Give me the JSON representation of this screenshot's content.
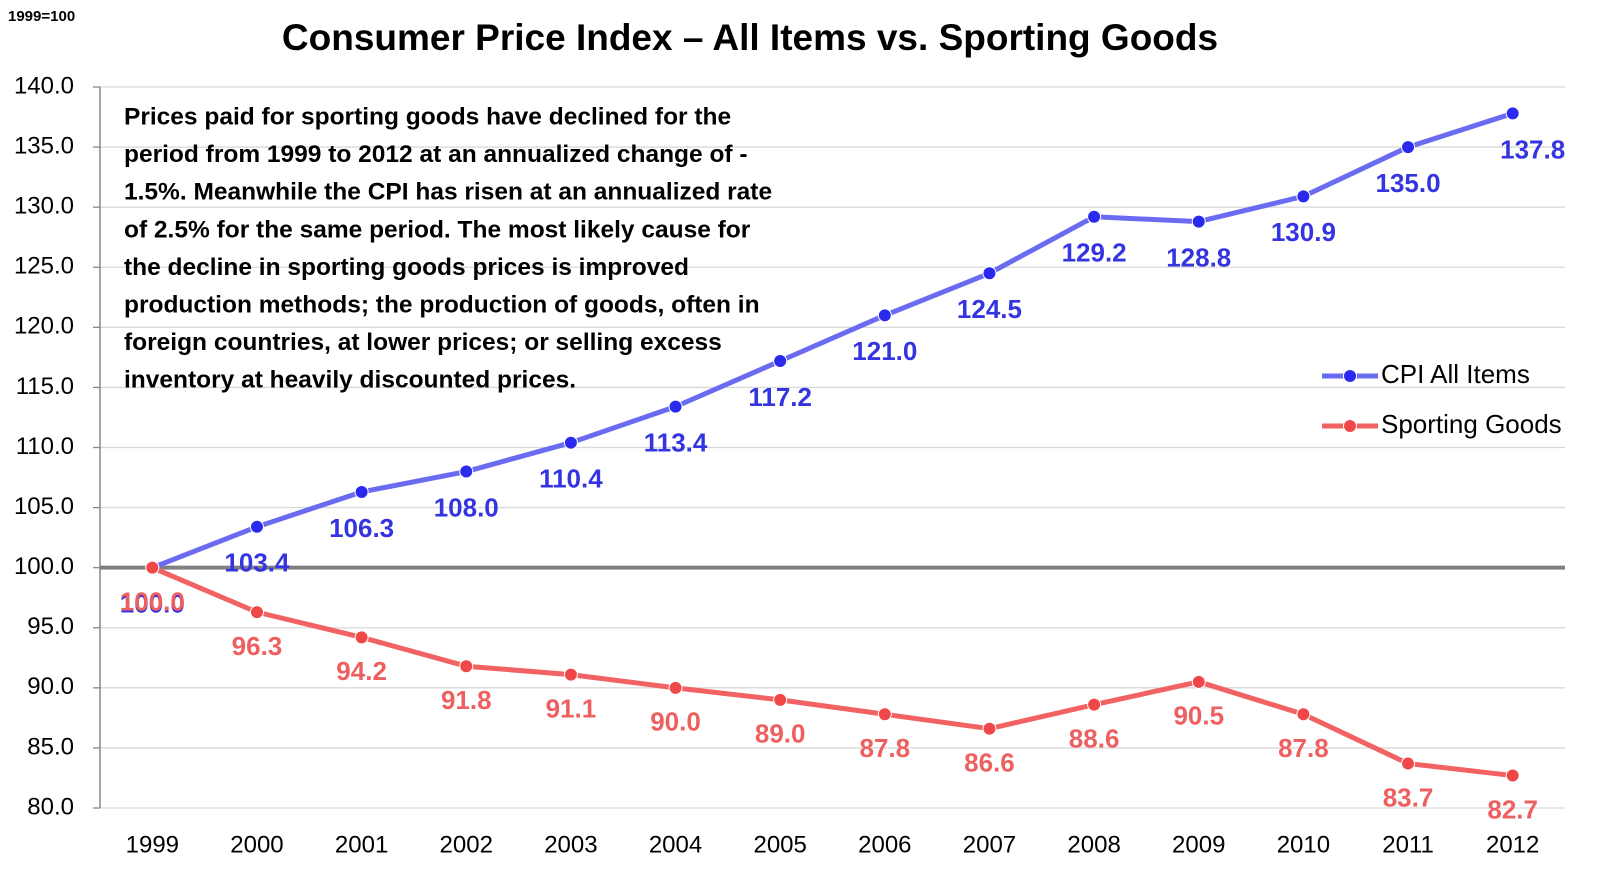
{
  "chart_data": {
    "type": "line",
    "title": "Consumer Price Index – All Items vs. Sporting Goods",
    "subtitle": "1999=100",
    "annotation_lines": [
      "Prices paid for sporting goods have declined for the",
      "period from 1999 to 2012 at an annualized change of -",
      "1.5%. Meanwhile the CPI has risen at an annualized rate",
      "of  2.5% for the same period. The most likely cause for",
      "the decline in sporting goods prices is improved",
      "production methods; the production of goods, often in",
      "foreign countries, at lower prices; or selling excess",
      "inventory at heavily discounted prices."
    ],
    "categories": [
      "1999",
      "2000",
      "2001",
      "2002",
      "2003",
      "2004",
      "2005",
      "2006",
      "2007",
      "2008",
      "2009",
      "2010",
      "2011",
      "2012"
    ],
    "series": [
      {
        "name": "CPI All Items",
        "color": "#6b6bf2",
        "marker_color": "#2a2aee",
        "label_color": "#3434e0",
        "values": [
          100,
          103.4,
          106.3,
          108,
          110.4,
          113.4,
          117.2,
          121,
          124.5,
          129.2,
          128.8,
          130.9,
          135,
          137.8
        ],
        "value_labels": [
          "100.0",
          "103.4",
          "106.3",
          "108.0",
          "110.4",
          "113.4",
          "117.2",
          "121.0",
          "124.5",
          "129.2",
          "128.8",
          "130.9",
          "135.0",
          "137.8"
        ]
      },
      {
        "name": "Sporting Goods",
        "color": "#f26262",
        "marker_color": "#f04848",
        "label_color": "#ee5f5f",
        "values": [
          100,
          96.3,
          94.2,
          91.8,
          91.1,
          90,
          89,
          87.8,
          86.6,
          88.6,
          90.5,
          87.8,
          83.7,
          82.7
        ],
        "value_labels": [
          "100.0",
          "96.3",
          "94.2",
          "91.8",
          "91.1",
          "90.0",
          "89.0",
          "87.8",
          "86.6",
          "88.6",
          "90.5",
          "87.8",
          "83.7",
          "82.7"
        ]
      }
    ],
    "ylim": [
      80,
      140
    ],
    "yticks": [
      {
        "value": 80,
        "label": "80.0"
      },
      {
        "value": 85,
        "label": "85.0"
      },
      {
        "value": 90,
        "label": "90.0"
      },
      {
        "value": 95,
        "label": "95.0"
      },
      {
        "value": 100,
        "label": "100.0"
      },
      {
        "value": 105,
        "label": "105.0"
      },
      {
        "value": 110,
        "label": "110.0"
      },
      {
        "value": 115,
        "label": "115.0"
      },
      {
        "value": 120,
        "label": "120.0"
      },
      {
        "value": 125,
        "label": "125.0"
      },
      {
        "value": 130,
        "label": "130.0"
      },
      {
        "value": 135,
        "label": "135.0"
      },
      {
        "value": 140,
        "label": "140.0"
      }
    ],
    "reference_line": 100,
    "grid": true,
    "legend": "right"
  }
}
